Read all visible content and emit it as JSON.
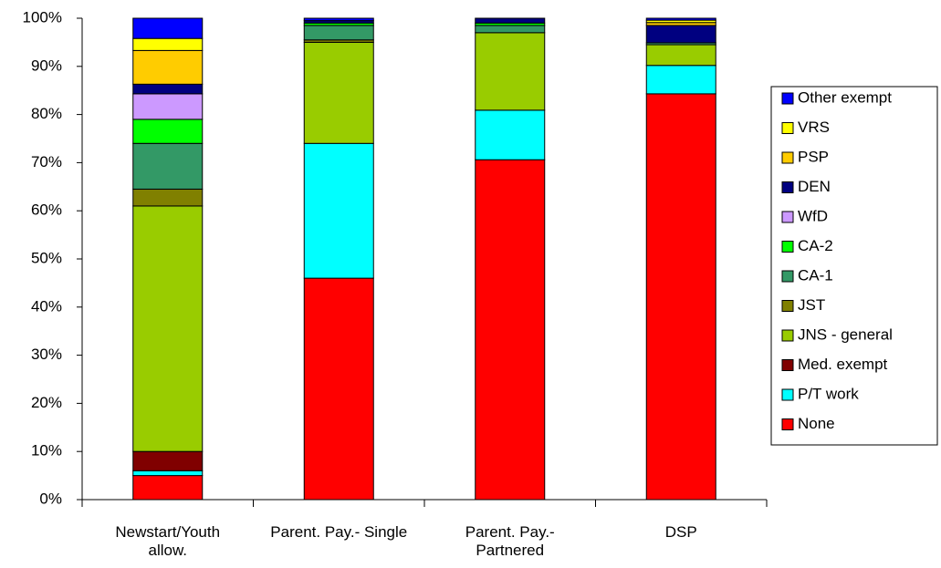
{
  "chart_data": {
    "type": "stacked_bar",
    "categories": [
      "Newstart/Youth allow.",
      "Parent. Pay.- Single",
      "Parent. Pay.- Partnered",
      "DSP"
    ],
    "series": [
      {
        "name": "None",
        "color": "#ff0000",
        "values": [
          5,
          46,
          70.6,
          84.3
        ]
      },
      {
        "name": "P/T work",
        "color": "#00ffff",
        "values": [
          1,
          28,
          10.3,
          5.9
        ]
      },
      {
        "name": "Med. exempt",
        "color": "#800000",
        "values": [
          4,
          0,
          0,
          0
        ]
      },
      {
        "name": "JNS - general",
        "color": "#99cc00",
        "values": [
          51,
          21,
          16.1,
          4.3
        ]
      },
      {
        "name": "JST",
        "color": "#808000",
        "values": [
          3.5,
          0.5,
          0,
          0
        ]
      },
      {
        "name": "CA-1",
        "color": "#339966",
        "values": [
          9.5,
          3,
          1.5,
          0.4
        ]
      },
      {
        "name": "CA-2",
        "color": "#00ff00",
        "values": [
          5,
          0.5,
          0.5,
          0
        ]
      },
      {
        "name": "WfD",
        "color": "#cc99ff",
        "values": [
          5.3,
          0,
          0,
          0
        ]
      },
      {
        "name": "DEN",
        "color": "#000080",
        "values": [
          2,
          0.5,
          1,
          3.6
        ]
      },
      {
        "name": "PSP",
        "color": "#ffcc00",
        "values": [
          7,
          0,
          0,
          0.6
        ]
      },
      {
        "name": "VRS",
        "color": "#ffff00",
        "values": [
          2.5,
          0,
          0,
          0.5
        ]
      },
      {
        "name": "Other exempt",
        "color": "#0000ff",
        "values": [
          4.2,
          0.5,
          0,
          0.4
        ]
      }
    ],
    "ylim": [
      0,
      100
    ],
    "yticks": [
      {
        "value": 0,
        "label": "0%"
      },
      {
        "value": 10,
        "label": "10%"
      },
      {
        "value": 20,
        "label": "20%"
      },
      {
        "value": 30,
        "label": "30%"
      },
      {
        "value": 40,
        "label": "40%"
      },
      {
        "value": 50,
        "label": "50%"
      },
      {
        "value": 60,
        "label": "60%"
      },
      {
        "value": 70,
        "label": "70%"
      },
      {
        "value": 80,
        "label": "80%"
      },
      {
        "value": 90,
        "label": "90%"
      },
      {
        "value": 100,
        "label": "100%"
      }
    ],
    "legend": "right"
  }
}
